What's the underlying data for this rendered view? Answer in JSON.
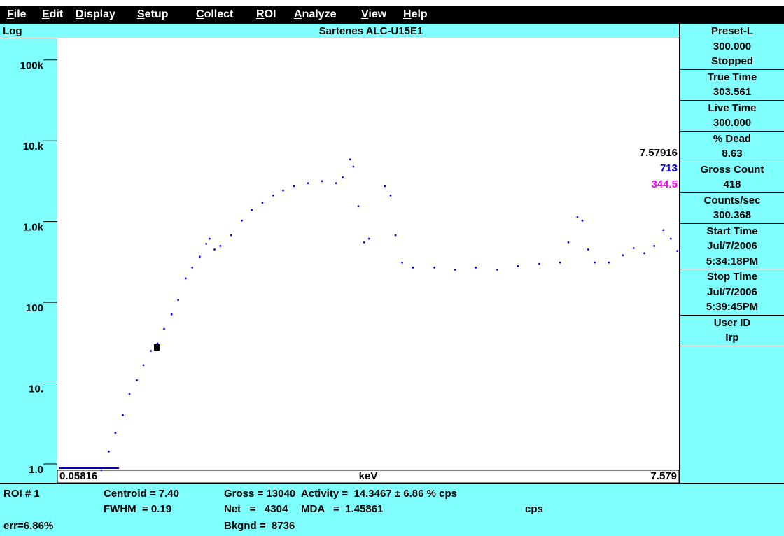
{
  "menu": [
    "File",
    "Edit",
    "Display",
    "Setup",
    "Collect",
    "ROI",
    "Analyze",
    "View",
    "Help"
  ],
  "chart_data": {
    "type": "scatter",
    "title": "Sartenes  ALC-U15E1",
    "scale_label": "Log",
    "x_label": "keV",
    "log_y": true,
    "color": "#0000ff",
    "x": [
      0.59,
      0.68,
      0.76,
      0.85,
      0.93,
      1.02,
      1.1,
      1.19,
      1.27,
      1.35,
      1.44,
      1.52,
      1.61,
      1.69,
      1.78,
      1.86,
      1.9,
      1.96,
      2.03,
      2.16,
      2.29,
      2.41,
      2.54,
      2.67,
      2.79,
      2.92,
      3.09,
      3.26,
      3.43,
      3.51,
      3.6,
      3.64,
      3.7,
      3.77,
      3.83,
      4.02,
      4.09,
      4.15,
      4.23,
      4.36,
      4.62,
      4.87,
      5.12,
      5.38,
      5.63,
      5.89,
      6.14,
      6.24,
      6.35,
      6.41,
      6.48,
      6.56,
      6.73,
      6.9,
      7.03,
      7.16,
      7.28,
      7.39,
      7.48,
      7.56
    ],
    "values": [
      1,
      1.7,
      2.9,
      4.8,
      8.8,
      13,
      20,
      30,
      37,
      56,
      85,
      128,
      237,
      323,
      440,
      636,
      735,
      540,
      598,
      814,
      1230,
      1670,
      2050,
      2520,
      2910,
      3300,
      3580,
      3800,
      3580,
      4220,
      7050,
      5740,
      1850,
      663,
      735,
      3300,
      2520,
      814,
      373,
      323,
      323,
      304,
      323,
      304,
      336,
      358,
      373,
      663,
      1360,
      1230,
      540,
      373,
      373,
      458,
      562,
      487,
      598,
      940,
      735,
      518
    ],
    "xlim": [
      0.05816,
      7.579
    ],
    "xticks": [
      0.05816,
      7.579
    ],
    "ylim": [
      1,
      200000
    ],
    "yticks": [
      {
        "value": 1,
        "label": "1.0"
      },
      {
        "value": 10,
        "label": "10."
      },
      100,
      {
        "value": 1000,
        "label": "1.0k"
      },
      {
        "value": 10000,
        "label": "10.k"
      },
      {
        "value": 100000,
        "label": "100k"
      }
    ],
    "annotations": [
      {
        "text": "7.57916",
        "color": "#000000"
      },
      {
        "text": "713",
        "color": "#0000ff"
      },
      {
        "text": "344.5",
        "color": "#ff00ff"
      }
    ]
  },
  "side_panel": [
    [
      "Preset-L",
      "300.000",
      "Stopped"
    ],
    [
      "True Time",
      "303.561"
    ],
    [
      "Live Time",
      "300.000"
    ],
    [
      "% Dead",
      "8.63"
    ],
    [
      "Gross Count",
      "418"
    ],
    [
      "Counts/sec",
      "300.368"
    ],
    [
      "Start Time",
      "Jul/7/2006",
      "5:34:18PM"
    ],
    [
      "Stop Time",
      "Jul/7/2006",
      "5:39:45PM"
    ],
    [
      "User ID",
      "Irp"
    ]
  ],
  "status": [
    [
      "ROI # 1",
      "Centroid = 7.40",
      "Gross = 13040",
      "Activity =  14.3467 ± 6.86 % cps"
    ],
    [
      "FWHM  = 0.19",
      "Net   =   4304",
      "MDA   =  1.45861",
      "cps"
    ],
    [
      "err=6.86%",
      "Bkgnd =  8736"
    ]
  ]
}
